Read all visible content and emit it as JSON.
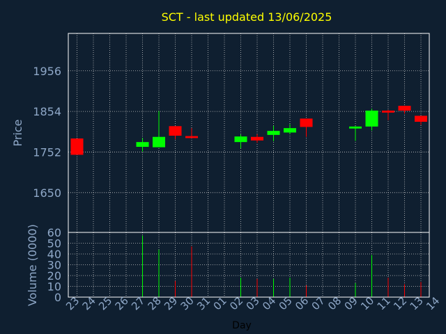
{
  "chart_data": {
    "type": "candlestick",
    "title": "SCT - last updated 13/06/2025",
    "xlabel": "Day",
    "price_panel": {
      "ylabel": "Price",
      "yticks": [
        1650,
        1752,
        1854,
        1956
      ],
      "ylim": [
        1550,
        2050
      ]
    },
    "volume_panel": {
      "ylabel": "Volume (0000)",
      "yticks": [
        0,
        10,
        20,
        30,
        40,
        50,
        60
      ],
      "ylim": [
        0,
        60
      ]
    },
    "x_tick_labels": [
      "23",
      "24",
      "25",
      "26",
      "27",
      "28",
      "29",
      "30",
      "31",
      "01",
      "02",
      "03",
      "04",
      "05",
      "06",
      "07",
      "08",
      "09",
      "10",
      "11",
      "12",
      "13",
      "14"
    ],
    "candles": [
      {
        "day": "23",
        "open": 1786,
        "high": 1786,
        "low": 1745,
        "close": 1745,
        "volume": 0
      },
      {
        "day": "27",
        "open": 1765,
        "high": 1787,
        "low": 1753,
        "close": 1777,
        "volume": 57
      },
      {
        "day": "28",
        "open": 1764,
        "high": 1855,
        "low": 1764,
        "close": 1790,
        "volume": 44
      },
      {
        "day": "29",
        "open": 1817,
        "high": 1817,
        "low": 1784,
        "close": 1793,
        "volume": 15
      },
      {
        "day": "30",
        "open": 1792,
        "high": 1812,
        "low": 1787,
        "close": 1787,
        "volume": 47
      },
      {
        "day": "02",
        "open": 1777,
        "high": 1796,
        "low": 1761,
        "close": 1791,
        "volume": 18
      },
      {
        "day": "03",
        "open": 1790,
        "high": 1797,
        "low": 1775,
        "close": 1781,
        "volume": 17
      },
      {
        "day": "04",
        "open": 1795,
        "high": 1818,
        "low": 1779,
        "close": 1805,
        "volume": 17
      },
      {
        "day": "05",
        "open": 1801,
        "high": 1822,
        "low": 1797,
        "close": 1812,
        "volume": 18
      },
      {
        "day": "06",
        "open": 1836,
        "high": 1836,
        "low": 1790,
        "close": 1815,
        "volume": 11
      },
      {
        "day": "09",
        "open": 1811,
        "high": 1817,
        "low": 1780,
        "close": 1816,
        "volume": 13
      },
      {
        "day": "10",
        "open": 1816,
        "high": 1861,
        "low": 1806,
        "close": 1856,
        "volume": 39
      },
      {
        "day": "11",
        "open": 1856,
        "high": 1858,
        "low": 1832,
        "close": 1851,
        "volume": 18
      },
      {
        "day": "12",
        "open": 1868,
        "high": 1868,
        "low": 1848,
        "close": 1856,
        "volume": 12
      },
      {
        "day": "13",
        "open": 1843,
        "high": 1843,
        "low": 1820,
        "close": 1828,
        "volume": 14
      }
    ],
    "colors": {
      "background": "#0f1f30",
      "plot_border": "#ffffff",
      "grid": "#c8c8c8",
      "title": "#ffff00",
      "axis_text": "#8fa8c8",
      "xlabel_text": "#000000",
      "up": "#00ff00",
      "down": "#ff0000"
    }
  }
}
